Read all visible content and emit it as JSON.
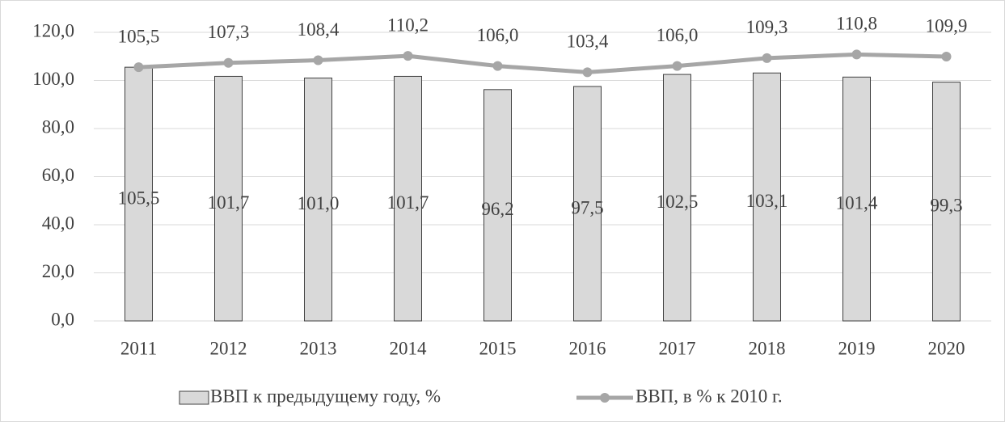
{
  "chart_data": {
    "type": "bar",
    "categories": [
      "2011",
      "2012",
      "2013",
      "2014",
      "2015",
      "2016",
      "2017",
      "2018",
      "2019",
      "2020"
    ],
    "series": [
      {
        "name": "ВВП к предыдущему году, %",
        "type": "bar",
        "color": "#d9d9d9",
        "values": [
          105.5,
          101.7,
          101.0,
          101.7,
          96.2,
          97.5,
          102.5,
          103.1,
          101.4,
          99.3
        ],
        "value_labels": [
          "105,5",
          "101,7",
          "101,0",
          "101,7",
          "96,2",
          "97,5",
          "102,5",
          "103,1",
          "101,4",
          "99,3"
        ]
      },
      {
        "name": "ВВП, в % к 2010 г.",
        "type": "line",
        "color": "#a6a6a6",
        "values": [
          105.5,
          107.3,
          108.4,
          110.2,
          106.0,
          103.4,
          106.0,
          109.3,
          110.8,
          109.9
        ],
        "value_labels": [
          "105,5",
          "107,3",
          "108,4",
          "110,2",
          "106,0",
          "103,4",
          "106,0",
          "109,3",
          "110,8",
          "109,9"
        ]
      }
    ],
    "ylim": [
      0,
      120
    ],
    "yticks": [
      {
        "value": 0,
        "label": "0,0"
      },
      {
        "value": 20,
        "label": "20,0"
      },
      {
        "value": 40,
        "label": "40,0"
      },
      {
        "value": 60,
        "label": "60,0"
      },
      {
        "value": 80,
        "label": "80,0"
      },
      {
        "value": 100,
        "label": "100,0"
      },
      {
        "value": 120,
        "label": "120,0"
      }
    ],
    "grid": true,
    "legend": "bottom"
  }
}
